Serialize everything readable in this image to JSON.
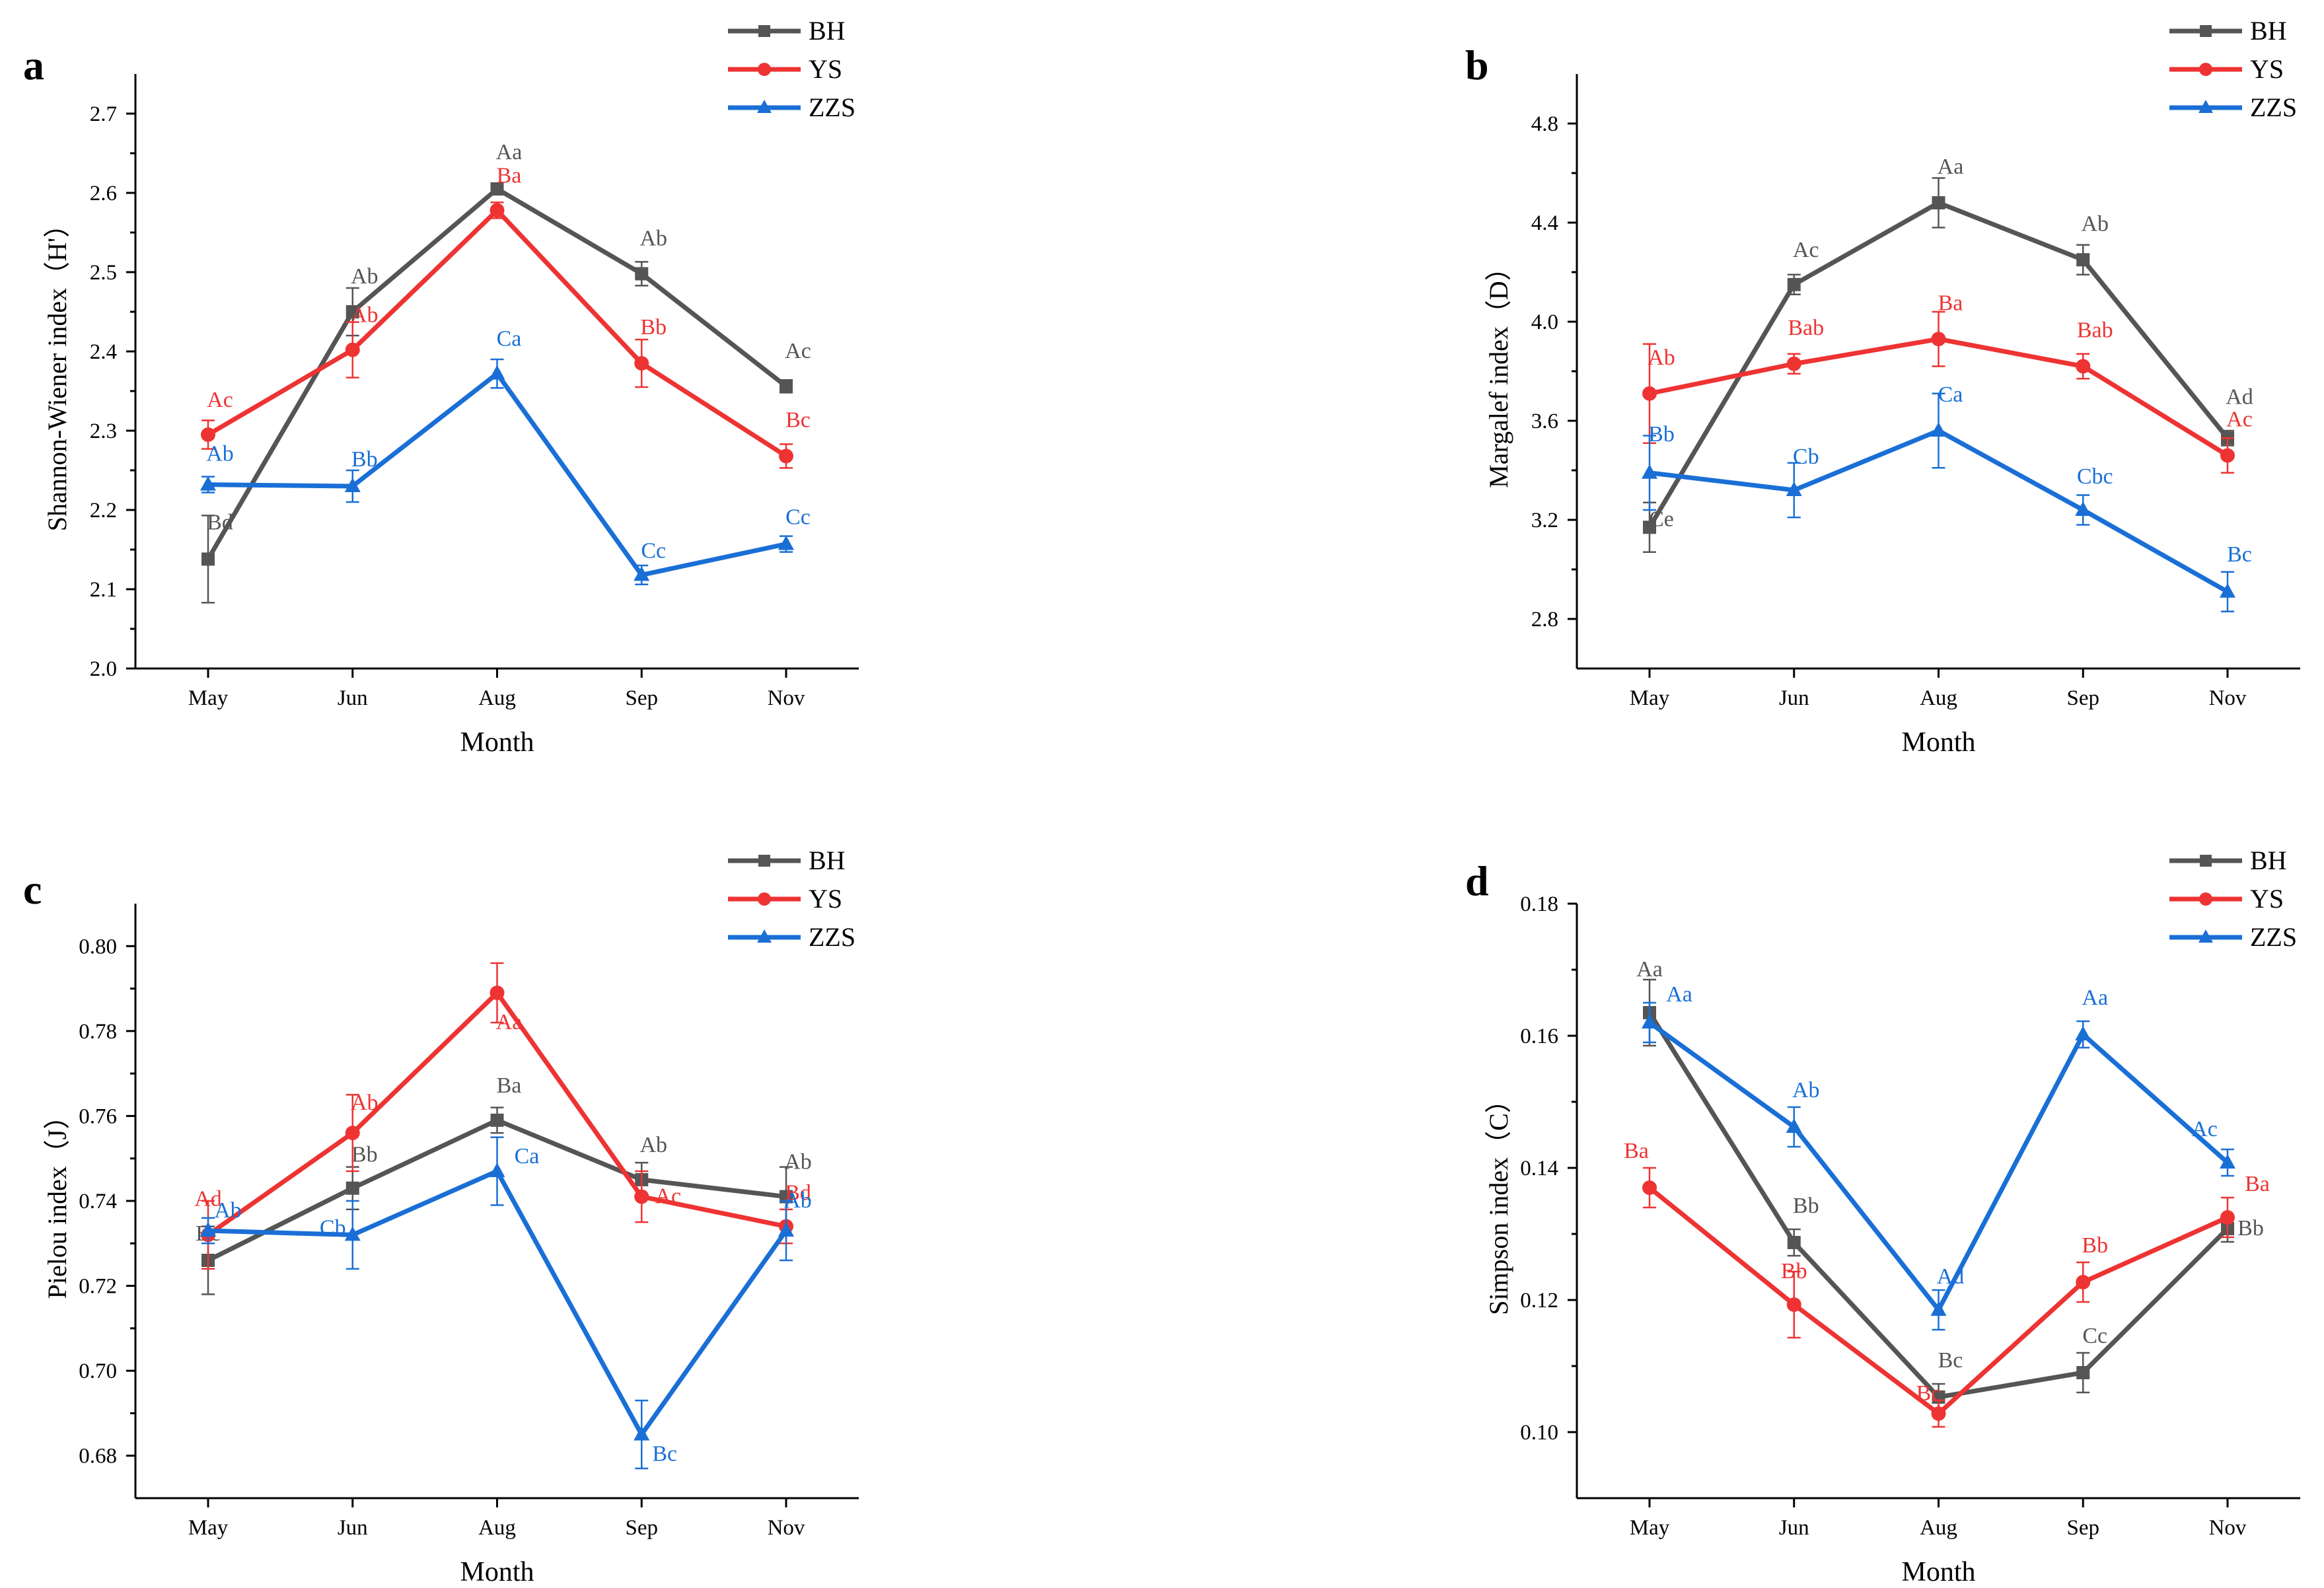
{
  "colors": {
    "BH": "#555555",
    "YS": "#ee3333",
    "ZZS": "#1a6fd6",
    "axis": "#000000"
  },
  "chart_data": [
    {
      "panel": "a",
      "type": "line",
      "title": "",
      "xlabel": "Month",
      "ylabel": "Shannon-Wiener index（H'）",
      "categories": [
        "May",
        "Jun",
        "Aug",
        "Sep",
        "Nov"
      ],
      "ylim": [
        2.0,
        2.75
      ],
      "yticks": [
        2.0,
        2.1,
        2.2,
        2.3,
        2.4,
        2.5,
        2.6,
        2.7
      ],
      "ytick_labels": [
        "2.0",
        "2.1",
        "2.2",
        "2.3",
        "2.4",
        "2.5",
        "2.6",
        "2.7"
      ],
      "legend_position": "top-right",
      "series": [
        {
          "name": "BH",
          "marker": "square",
          "values": [
            2.138,
            2.45,
            2.605,
            2.498,
            2.356
          ],
          "errors": [
            0.055,
            0.03,
            0.005,
            0.015,
            0.008
          ],
          "labels": [
            "Bd",
            "Ab",
            "Aa",
            "Ab",
            "Ac"
          ]
        },
        {
          "name": "YS",
          "marker": "circle",
          "values": [
            2.295,
            2.402,
            2.578,
            2.385,
            2.268
          ],
          "errors": [
            0.018,
            0.035,
            0.01,
            0.03,
            0.015
          ],
          "labels": [
            "Ac",
            "Ab",
            "Ba",
            "Bb",
            "Bc"
          ]
        },
        {
          "name": "ZZS",
          "marker": "triangle",
          "values": [
            2.232,
            2.23,
            2.372,
            2.118,
            2.157
          ],
          "errors": [
            0.01,
            0.02,
            0.018,
            0.012,
            0.01
          ],
          "labels": [
            "Ab",
            "Bb",
            "Ca",
            "Cc",
            "Cc"
          ]
        }
      ]
    },
    {
      "panel": "b",
      "type": "line",
      "title": "",
      "xlabel": "Month",
      "ylabel": "Margalef index（D）",
      "categories": [
        "May",
        "Jun",
        "Aug",
        "Sep",
        "Nov"
      ],
      "ylim": [
        2.6,
        5.0
      ],
      "yticks": [
        2.8,
        3.2,
        3.6,
        4.0,
        4.4,
        4.8
      ],
      "ytick_labels": [
        "2.8",
        "3.2",
        "3.6",
        "4.0",
        "4.4",
        "4.8"
      ],
      "legend_position": "top-right",
      "series": [
        {
          "name": "BH",
          "marker": "square",
          "values": [
            3.17,
            4.15,
            4.48,
            4.25,
            3.53
          ],
          "errors": [
            0.1,
            0.04,
            0.1,
            0.06,
            0.03
          ],
          "labels": [
            "Ce",
            "Ac",
            "Aa",
            "Ab",
            "Ad"
          ]
        },
        {
          "name": "YS",
          "marker": "circle",
          "values": [
            3.71,
            3.83,
            3.93,
            3.82,
            3.46
          ],
          "errors": [
            0.2,
            0.04,
            0.11,
            0.05,
            0.07
          ],
          "labels": [
            "Ab",
            "Bab",
            "Ba",
            "Bab",
            "Ac"
          ]
        },
        {
          "name": "ZZS",
          "marker": "triangle",
          "values": [
            3.39,
            3.32,
            3.56,
            3.24,
            2.91
          ],
          "errors": [
            0.15,
            0.11,
            0.15,
            0.06,
            0.08
          ],
          "labels": [
            "Bb",
            "Cb",
            "Ca",
            "Cbc",
            "Bc"
          ]
        }
      ]
    },
    {
      "panel": "c",
      "type": "line",
      "title": "",
      "xlabel": "Month",
      "ylabel": "Pielou index（J）",
      "categories": [
        "May",
        "Jun",
        "Aug",
        "Sep",
        "Nov"
      ],
      "ylim": [
        0.67,
        0.81
      ],
      "yticks": [
        0.68,
        0.7,
        0.72,
        0.74,
        0.76,
        0.78,
        0.8
      ],
      "ytick_labels": [
        "0.68",
        "0.70",
        "0.72",
        "0.74",
        "0.76",
        "0.78",
        "0.80"
      ],
      "legend_position": "top-right",
      "series": [
        {
          "name": "BH",
          "marker": "square",
          "values": [
            0.726,
            0.743,
            0.759,
            0.745,
            0.741
          ],
          "errors": [
            0.008,
            0.005,
            0.003,
            0.004,
            0.007
          ],
          "labels": [
            "Bc",
            "Bb",
            "Ba",
            "Ab",
            "Ab"
          ]
        },
        {
          "name": "YS",
          "marker": "circle",
          "values": [
            0.732,
            0.756,
            0.789,
            0.741,
            0.734
          ],
          "errors": [
            0.008,
            0.009,
            0.007,
            0.006,
            0.004
          ],
          "labels": [
            "Ad",
            "Ab",
            "Aa",
            "Ac",
            "Bd"
          ]
        },
        {
          "name": "ZZS",
          "marker": "triangle",
          "values": [
            0.733,
            0.732,
            0.747,
            0.685,
            0.733
          ],
          "errors": [
            0.003,
            0.008,
            0.008,
            0.008,
            0.007
          ],
          "labels": [
            "Ab",
            "Cb",
            "Ca",
            "Bc",
            "Ab"
          ]
        }
      ]
    },
    {
      "panel": "d",
      "type": "line",
      "title": "",
      "xlabel": "Month",
      "ylabel": "Simpson index（C）",
      "categories": [
        "May",
        "Jun",
        "Aug",
        "Sep",
        "Nov"
      ],
      "ylim": [
        0.09,
        0.18
      ],
      "yticks": [
        0.1,
        0.12,
        0.14,
        0.16,
        0.18
      ],
      "ytick_labels": [
        "0.10",
        "0.12",
        "0.14",
        "0.16",
        "0.18"
      ],
      "legend_position": "top-right",
      "series": [
        {
          "name": "BH",
          "marker": "square",
          "values": [
            0.1635,
            0.1287,
            0.1053,
            0.109,
            0.1308
          ],
          "errors": [
            0.005,
            0.002,
            0.002,
            0.003,
            0.002
          ],
          "labels": [
            "Aa",
            "Bb",
            "Bc",
            "Cc",
            "Bb"
          ]
        },
        {
          "name": "YS",
          "marker": "circle",
          "values": [
            0.137,
            0.1193,
            0.1028,
            0.1227,
            0.1325
          ],
          "errors": [
            0.003,
            0.005,
            0.002,
            0.003,
            0.003
          ],
          "labels": [
            "Ba",
            "Bb",
            "Bc",
            "Bb",
            "Ba"
          ]
        },
        {
          "name": "ZZS",
          "marker": "triangle",
          "values": [
            0.162,
            0.1462,
            0.1185,
            0.1602,
            0.1408
          ],
          "errors": [
            0.003,
            0.003,
            0.003,
            0.002,
            0.002
          ],
          "labels": [
            "Aa",
            "Ab",
            "Ad",
            "Aa",
            "Ac"
          ]
        }
      ]
    }
  ]
}
